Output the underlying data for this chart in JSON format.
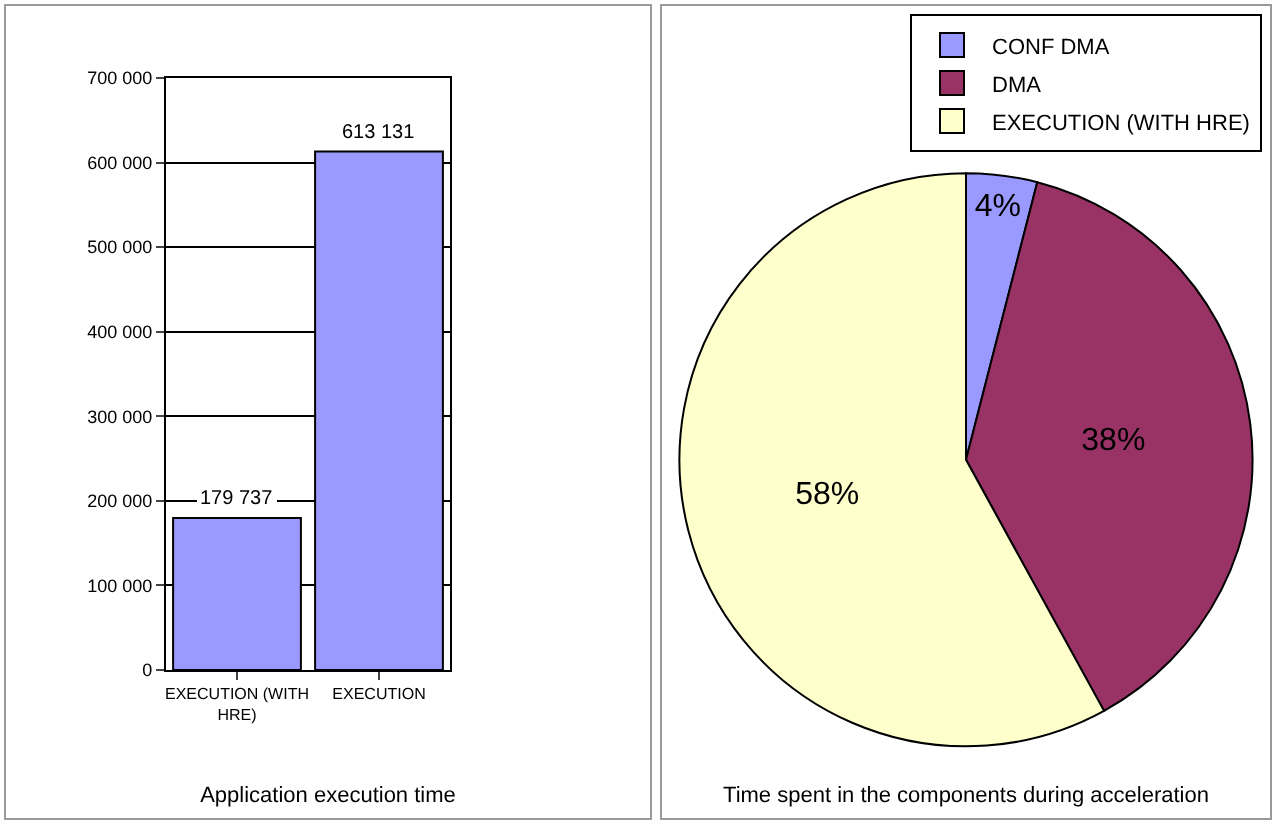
{
  "chart_data": [
    {
      "type": "bar",
      "title": "Application execution time",
      "categories": [
        "EXECUTION (WITH HRE)",
        "EXECUTION"
      ],
      "values": [
        179737,
        613131
      ],
      "value_labels": [
        "179 737",
        "613 131"
      ],
      "color": "#9999ff",
      "ylim": [
        0,
        700000
      ],
      "yticks": [
        {
          "value": 0,
          "label": "0"
        },
        {
          "value": 100000,
          "label": "100 000"
        },
        {
          "value": 200000,
          "label": "200 000"
        },
        {
          "value": 300000,
          "label": "300 000"
        },
        {
          "value": 400000,
          "label": "400 000"
        },
        {
          "value": 500000,
          "label": "500 000"
        },
        {
          "value": 600000,
          "label": "600 000"
        },
        {
          "value": 700000,
          "label": "700 000"
        }
      ],
      "grid": "y",
      "legend": false
    },
    {
      "type": "pie",
      "title": "Time spent in the components during acceleration",
      "categories": [
        "CONF DMA",
        "DMA",
        "EXECUTION (WITH HRE)"
      ],
      "values": [
        4,
        38,
        58
      ],
      "value_labels": [
        "4%",
        "38%",
        "58%"
      ],
      "colors": [
        "#9999ff",
        "#993366",
        "#ffffcc"
      ],
      "legend": "top right"
    }
  ]
}
